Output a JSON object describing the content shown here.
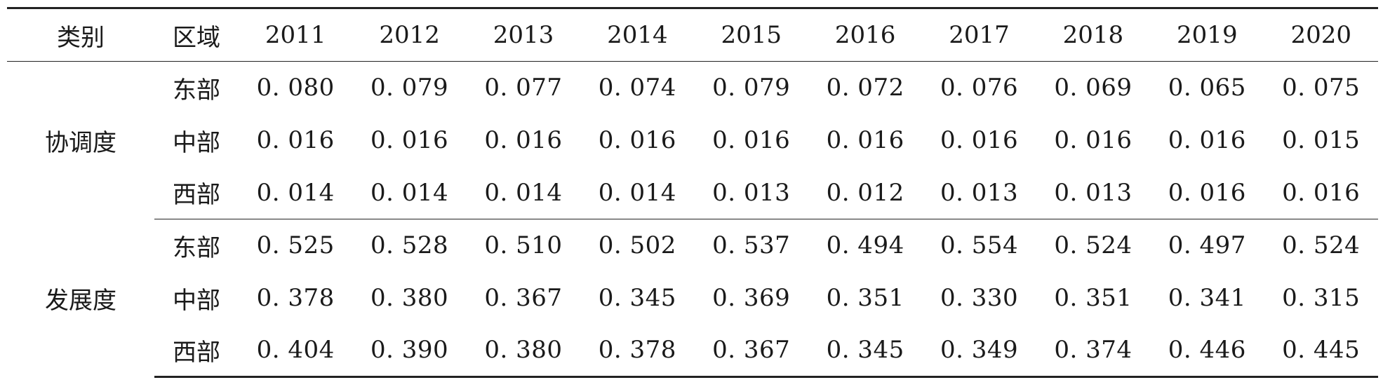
{
  "headers": [
    "类别",
    "区域",
    "2011",
    "2012",
    "2013",
    "2014",
    "2015",
    "2016",
    "2017",
    "2018",
    "2019",
    "2020"
  ],
  "groups": [
    {
      "category": "协调度",
      "rows": [
        {
          "region": "东部",
          "values": [
            "0. 080",
            "0. 079",
            "0. 077",
            "0. 074",
            "0. 079",
            "0. 072",
            "0. 076",
            "0. 069",
            "0. 065",
            "0. 075"
          ]
        },
        {
          "region": "中部",
          "values": [
            "0. 016",
            "0. 016",
            "0. 016",
            "0. 016",
            "0. 016",
            "0. 016",
            "0. 016",
            "0. 016",
            "0. 016",
            "0. 015"
          ]
        },
        {
          "region": "西部",
          "values": [
            "0. 014",
            "0. 014",
            "0. 014",
            "0. 014",
            "0. 013",
            "0. 012",
            "0. 013",
            "0. 013",
            "0. 016",
            "0. 016"
          ]
        }
      ]
    },
    {
      "category": "发展度",
      "rows": [
        {
          "region": "东部",
          "values": [
            "0. 525",
            "0. 528",
            "0. 510",
            "0. 502",
            "0. 537",
            "0. 494",
            "0. 554",
            "0. 524",
            "0. 497",
            "0. 524"
          ]
        },
        {
          "region": "中部",
          "values": [
            "0. 378",
            "0. 380",
            "0. 367",
            "0. 345",
            "0. 369",
            "0. 351",
            "0. 330",
            "0. 351",
            "0. 341",
            "0. 315"
          ]
        },
        {
          "region": "西部",
          "values": [
            "0. 404",
            "0. 390",
            "0. 380",
            "0. 378",
            "0. 367",
            "0. 345",
            "0. 349",
            "0. 374",
            "0. 446",
            "0. 445"
          ]
        }
      ]
    }
  ]
}
